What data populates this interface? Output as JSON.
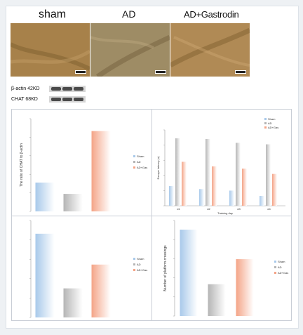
{
  "photos": [
    {
      "label": "sham",
      "tone": "#a7814a"
    },
    {
      "label": "AD",
      "tone": "#9e8c65"
    },
    {
      "label": "AD+Gastrodin",
      "tone": "#b08a55"
    }
  ],
  "western_blot": {
    "rows": [
      {
        "label": "β-actin 42KD"
      },
      {
        "label": "CHAT 68KD"
      }
    ]
  },
  "colors": {
    "sham": "#a8c9ea",
    "ad": "#b5b5b5",
    "gastrodin": "#f4a487"
  },
  "chart_data": [
    {
      "type": "bar",
      "categories": [
        "sham",
        "AD",
        "AD+Gastrodin"
      ],
      "values": [
        0.28,
        0.17,
        0.78
      ],
      "ylim": [
        0,
        0.9
      ],
      "ylabel": "The ratio of CHAT to β-actin",
      "legend": [
        "Sham",
        "AD",
        "AD+Gas"
      ],
      "legend_position": "right"
    },
    {
      "type": "bar",
      "categories": [
        "d1",
        "d2",
        "d3",
        "d4"
      ],
      "series": [
        {
          "name": "Sham",
          "values": [
            26,
            22,
            20,
            13
          ]
        },
        {
          "name": "AD",
          "values": [
            89,
            88,
            83,
            81
          ]
        },
        {
          "name": "AD+Gas",
          "values": [
            58,
            52,
            49,
            42
          ]
        }
      ],
      "ylim": [
        0,
        100
      ],
      "ylabel": "Escape latency (s)",
      "xlabel": "Training day",
      "legend_position": "top-right"
    },
    {
      "type": "bar",
      "categories": [
        "sham",
        "AD",
        "AD+Gastrodin"
      ],
      "values": [
        0.95,
        0.33,
        0.6
      ],
      "ylim": [
        0,
        1.1
      ],
      "ylabel": "",
      "legend": [
        "Sham",
        "AD",
        "AD+Gas"
      ],
      "legend_position": "right"
    },
    {
      "type": "bar",
      "categories": [
        "sham",
        "AD",
        "AD+Gastrodin"
      ],
      "values": [
        38,
        14,
        25
      ],
      "ylim": [
        0,
        42
      ],
      "ylabel": "Number of platform crossings",
      "legend": [
        "Sham",
        "AD",
        "AD+Gas"
      ],
      "legend_position": "right"
    }
  ]
}
